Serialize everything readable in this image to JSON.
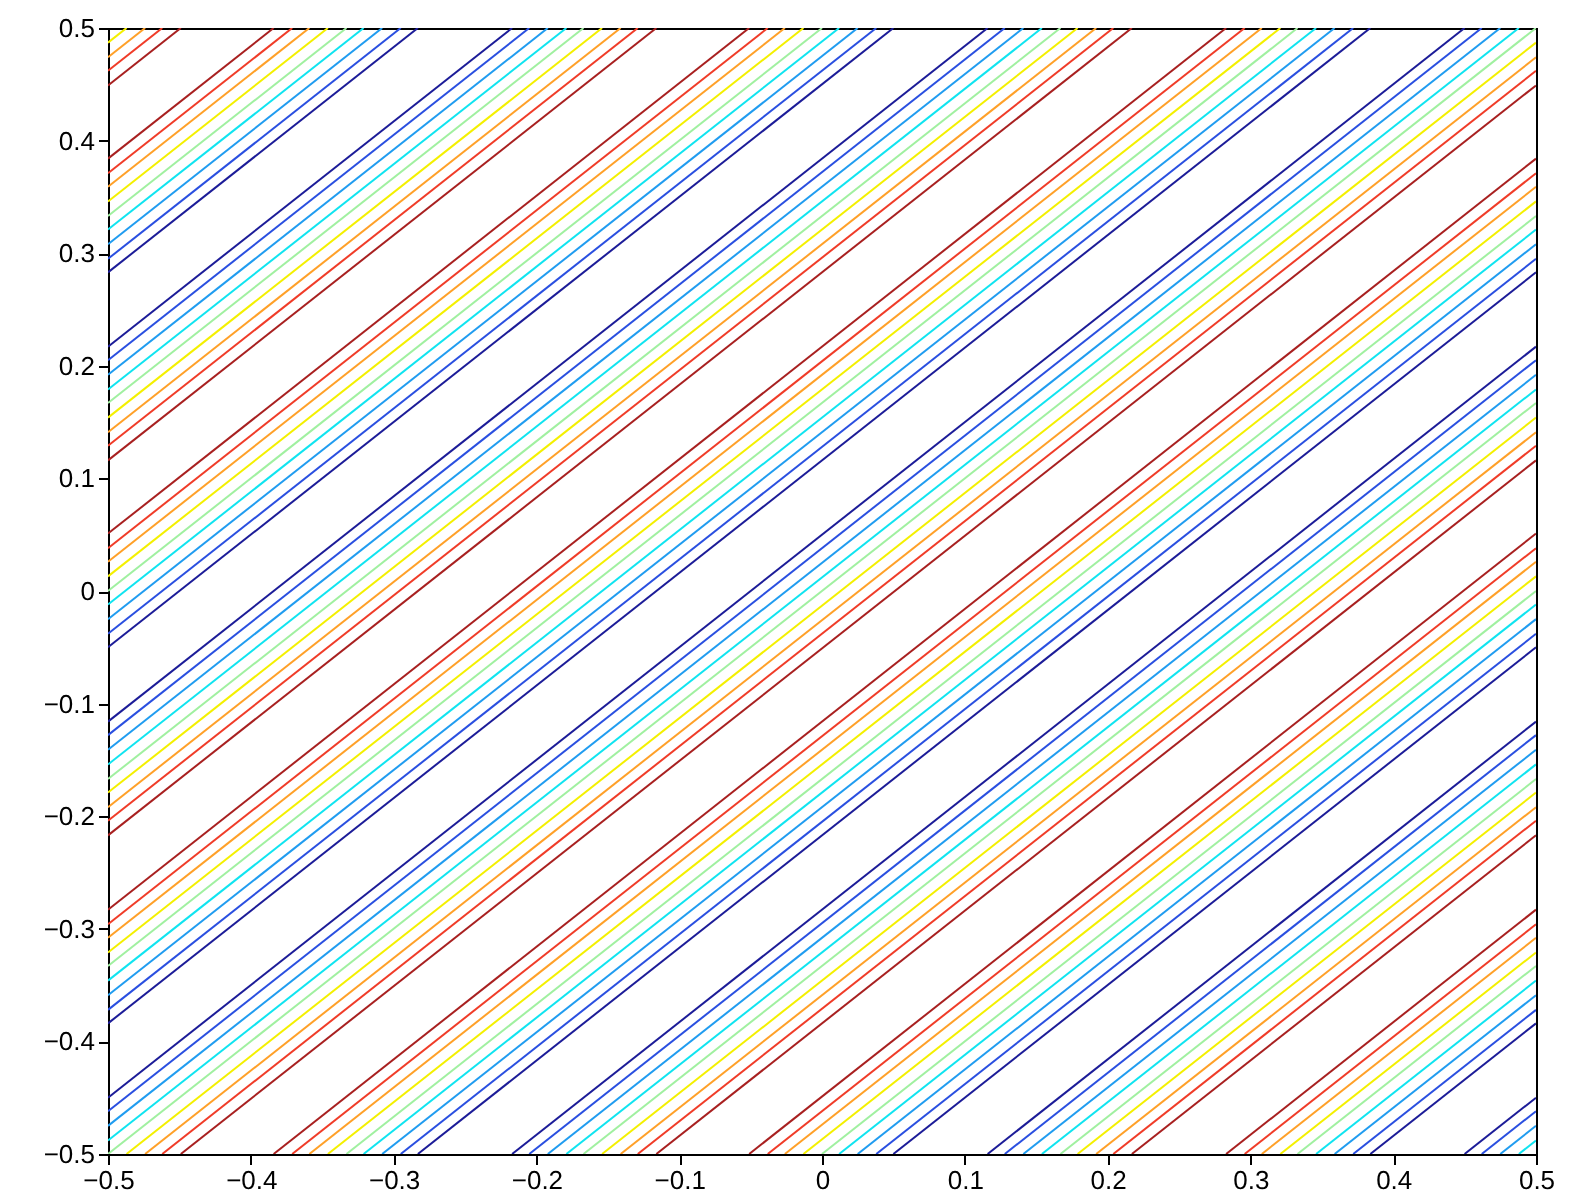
{
  "chart_data": {
    "type": "line",
    "xlim": [
      -0.5,
      0.5
    ],
    "ylim": [
      -0.5,
      0.5
    ],
    "xticks": [
      {
        "value": -0.5,
        "label": "−0.5"
      },
      {
        "value": -0.4,
        "label": "−0.4"
      },
      {
        "value": -0.3,
        "label": "−0.3"
      },
      {
        "value": -0.2,
        "label": "−0.2"
      },
      {
        "value": -0.1,
        "label": "−0.1"
      },
      0,
      0.1,
      0.2,
      0.3,
      0.4,
      0.5
    ],
    "yticks": [
      {
        "value": -0.5,
        "label": "−0.5"
      },
      {
        "value": -0.4,
        "label": "−0.4"
      },
      {
        "value": -0.3,
        "label": "−0.3"
      },
      {
        "value": -0.2,
        "label": "−0.2"
      },
      {
        "value": -0.1,
        "label": "−0.1"
      },
      0,
      0.1,
      0.2,
      0.3,
      0.4,
      0.5
    ],
    "grid": false,
    "marker": "none",
    "line_style": "solid",
    "series": [
      {
        "color": "#1c1c98",
        "x": [
          -0.5,
          -0.283,
          null,
          -0.5,
          -0.217,
          null,
          -0.5,
          0.05,
          null,
          -0.5,
          0.116,
          null,
          -0.5,
          0.384,
          null,
          -0.5,
          0.45,
          null,
          -0.283,
          0.5,
          null,
          -0.217,
          0.5,
          null,
          0.05,
          0.5,
          null,
          0.116,
          0.5,
          null,
          0.384,
          0.5,
          null,
          0.45,
          0.5
        ],
        "values": [
          0.283,
          0.5,
          null,
          0.217,
          0.5,
          null,
          -0.05,
          0.5,
          null,
          -0.116,
          0.5,
          null,
          -0.384,
          0.5,
          null,
          -0.45,
          0.5,
          null,
          -0.5,
          0.283,
          null,
          -0.5,
          0.217,
          null,
          -0.5,
          -0.05,
          null,
          -0.5,
          -0.116,
          null,
          -0.5,
          -0.384,
          null,
          -0.5,
          -0.45
        ]
      },
      {
        "color": "#2a4fe0",
        "x": [
          -0.5,
          -0.295,
          null,
          -0.5,
          -0.205,
          null,
          -0.5,
          0.038,
          null,
          -0.5,
          0.128,
          null,
          -0.5,
          0.372,
          null,
          -0.5,
          0.462,
          null,
          -0.295,
          0.5,
          null,
          -0.205,
          0.5,
          null,
          0.038,
          0.5,
          null,
          0.128,
          0.5,
          null,
          0.372,
          0.5,
          null,
          0.462,
          0.5
        ],
        "values": [
          0.295,
          0.5,
          null,
          0.205,
          0.5,
          null,
          -0.038,
          0.5,
          null,
          -0.128,
          0.5,
          null,
          -0.372,
          0.5,
          null,
          -0.462,
          0.5,
          null,
          -0.5,
          0.295,
          null,
          -0.5,
          0.205,
          null,
          -0.5,
          -0.038,
          null,
          -0.5,
          -0.128,
          null,
          -0.5,
          -0.372,
          null,
          -0.5,
          -0.462
        ]
      },
      {
        "color": "#209cf0",
        "x": [
          -0.5,
          -0.308,
          null,
          -0.5,
          -0.192,
          null,
          -0.5,
          0.025,
          null,
          -0.5,
          0.141,
          null,
          -0.5,
          0.359,
          null,
          -0.5,
          0.475,
          null,
          -0.308,
          0.5,
          null,
          -0.192,
          0.5,
          null,
          0.025,
          0.5,
          null,
          0.141,
          0.5,
          null,
          0.359,
          0.5,
          null,
          0.475,
          0.5
        ],
        "values": [
          0.308,
          0.5,
          null,
          0.192,
          0.5,
          null,
          -0.025,
          0.5,
          null,
          -0.141,
          0.5,
          null,
          -0.359,
          0.5,
          null,
          -0.475,
          0.5,
          null,
          -0.5,
          0.308,
          null,
          -0.5,
          0.192,
          null,
          -0.5,
          -0.025,
          null,
          -0.5,
          -0.141,
          null,
          -0.5,
          -0.359,
          null,
          -0.5,
          -0.475
        ]
      },
      {
        "color": "#10e4f0",
        "x": [
          -0.5,
          -0.321,
          null,
          -0.5,
          -0.179,
          null,
          -0.5,
          0.012,
          null,
          -0.5,
          0.154,
          null,
          -0.5,
          0.346,
          null,
          -0.5,
          0.488,
          null,
          -0.321,
          0.5,
          null,
          -0.179,
          0.5,
          null,
          0.012,
          0.5,
          null,
          0.154,
          0.5,
          null,
          0.346,
          0.5,
          null,
          0.488,
          0.5
        ],
        "values": [
          0.321,
          0.5,
          null,
          0.179,
          0.5,
          null,
          -0.012,
          0.5,
          null,
          -0.154,
          0.5,
          null,
          -0.346,
          0.5,
          null,
          -0.488,
          0.5,
          null,
          -0.5,
          0.321,
          null,
          -0.5,
          0.179,
          null,
          -0.5,
          -0.012,
          null,
          -0.5,
          -0.154,
          null,
          -0.5,
          -0.346,
          null,
          -0.5,
          -0.488
        ]
      },
      {
        "color": "#a0f0a0",
        "x": [
          -0.5,
          -0.333,
          null,
          -0.5,
          -0.167,
          null,
          -0.5,
          0,
          null,
          -0.5,
          0.167,
          null,
          -0.5,
          0.333,
          null,
          -0.5,
          0.5,
          null,
          -0.333,
          0.5,
          null,
          -0.167,
          0.5,
          null,
          0,
          0.5,
          null,
          0.167,
          0.5,
          null,
          0.333,
          0.5
        ],
        "values": [
          0.333,
          0.5,
          null,
          0.167,
          0.5,
          null,
          0,
          0.5,
          null,
          -0.167,
          0.5,
          null,
          -0.333,
          0.5,
          null,
          -0.5,
          0.5,
          null,
          -0.5,
          0.333,
          null,
          -0.5,
          0.167,
          null,
          -0.5,
          0,
          null,
          -0.5,
          -0.167,
          null,
          -0.5,
          -0.333
        ]
      },
      {
        "color": "#f4f000",
        "x": [
          -0.5,
          -0.487,
          null,
          -0.5,
          -0.346,
          null,
          -0.5,
          -0.154,
          null,
          -0.5,
          -0.013,
          null,
          -0.5,
          0.179,
          null,
          -0.5,
          0.321,
          null,
          -0.487,
          0.5,
          null,
          -0.346,
          0.5,
          null,
          -0.154,
          0.5,
          null,
          -0.013,
          0.5,
          null,
          0.179,
          0.5,
          null,
          0.321,
          0.5
        ],
        "values": [
          0.487,
          0.5,
          null,
          0.346,
          0.5,
          null,
          0.154,
          0.5,
          null,
          0.013,
          0.5,
          null,
          -0.179,
          0.5,
          null,
          -0.321,
          0.5,
          null,
          -0.5,
          0.487,
          null,
          -0.5,
          0.346,
          null,
          -0.5,
          0.154,
          null,
          -0.5,
          0.013,
          null,
          -0.5,
          -0.179,
          null,
          -0.5,
          -0.321
        ]
      },
      {
        "color": "#ffa028",
        "x": [
          -0.5,
          -0.474,
          null,
          -0.5,
          -0.359,
          null,
          -0.5,
          -0.141,
          null,
          -0.5,
          -0.026,
          null,
          -0.5,
          0.192,
          null,
          -0.5,
          0.308,
          null,
          -0.474,
          0.5,
          null,
          -0.359,
          0.5,
          null,
          -0.141,
          0.5,
          null,
          -0.026,
          0.5,
          null,
          0.192,
          0.5,
          null,
          0.308,
          0.5
        ],
        "values": [
          0.474,
          0.5,
          null,
          0.359,
          0.5,
          null,
          0.141,
          0.5,
          null,
          0.026,
          0.5,
          null,
          -0.192,
          0.5,
          null,
          -0.308,
          0.5,
          null,
          -0.5,
          0.474,
          null,
          -0.5,
          0.359,
          null,
          -0.5,
          0.141,
          null,
          -0.5,
          0.026,
          null,
          -0.5,
          -0.192,
          null,
          -0.5,
          -0.308
        ]
      },
      {
        "color": "#f03c28",
        "x": [
          -0.5,
          -0.462,
          null,
          -0.5,
          -0.371,
          null,
          -0.5,
          -0.129,
          null,
          -0.5,
          -0.038,
          null,
          -0.5,
          0.204,
          null,
          -0.5,
          0.296,
          null,
          -0.462,
          0.5,
          null,
          -0.371,
          0.5,
          null,
          -0.129,
          0.5,
          null,
          -0.038,
          0.5,
          null,
          0.204,
          0.5,
          null,
          0.296,
          0.5
        ],
        "values": [
          0.462,
          0.5,
          null,
          0.371,
          0.5,
          null,
          0.129,
          0.5,
          null,
          0.038,
          0.5,
          null,
          -0.204,
          0.5,
          null,
          -0.296,
          0.5,
          null,
          -0.5,
          0.462,
          null,
          -0.5,
          0.371,
          null,
          -0.5,
          0.129,
          null,
          -0.5,
          0.038,
          null,
          -0.5,
          -0.204,
          null,
          -0.5,
          -0.296
        ]
      },
      {
        "color": "#a82020",
        "x": [
          -0.5,
          -0.449,
          null,
          -0.5,
          -0.384,
          null,
          -0.5,
          -0.116,
          null,
          -0.5,
          -0.051,
          null,
          -0.5,
          0.217,
          null,
          -0.5,
          0.283,
          null,
          -0.449,
          0.5,
          null,
          -0.384,
          0.5,
          null,
          -0.116,
          0.5,
          null,
          -0.051,
          0.5,
          null,
          0.217,
          0.5,
          null,
          0.283,
          0.5
        ],
        "values": [
          0.449,
          0.5,
          null,
          0.384,
          0.5,
          null,
          0.116,
          0.5,
          null,
          0.051,
          0.5,
          null,
          -0.217,
          0.5,
          null,
          -0.283,
          0.5,
          null,
          -0.5,
          0.449,
          null,
          -0.5,
          0.384,
          null,
          -0.5,
          0.116,
          null,
          -0.5,
          0.051,
          null,
          -0.5,
          -0.217,
          null,
          -0.5,
          -0.283
        ]
      }
    ]
  }
}
